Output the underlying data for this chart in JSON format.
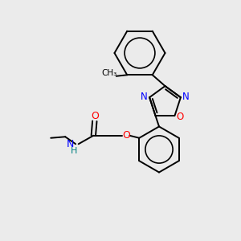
{
  "bg_color": "#ebebeb",
  "bond_color": "#000000",
  "N_color": "#0000ff",
  "O_color": "#ff0000",
  "NH_color": "#008080",
  "figsize": [
    3.0,
    3.0
  ],
  "dpi": 100,
  "xlim": [
    0,
    10
  ],
  "ylim": [
    0,
    10
  ]
}
